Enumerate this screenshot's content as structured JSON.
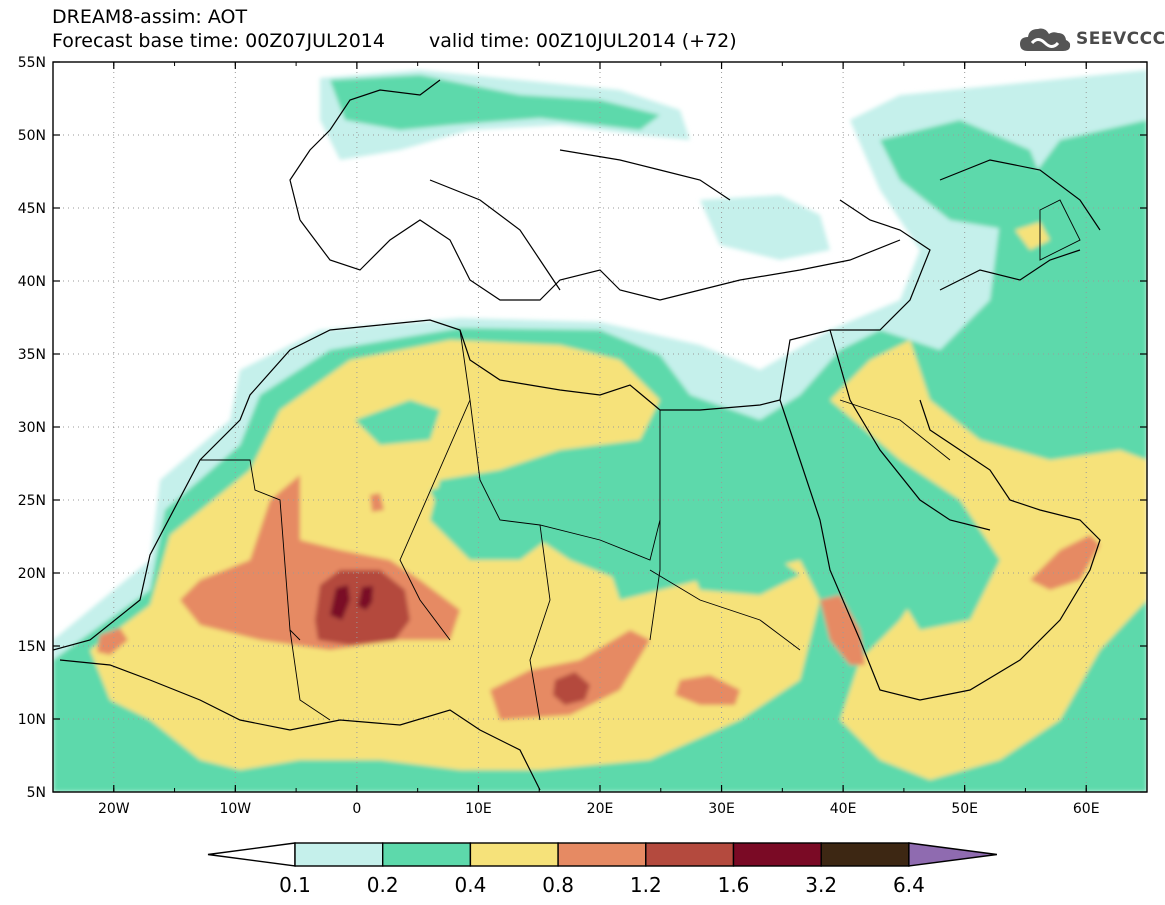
{
  "header": {
    "line1": "DREAM8-assim: AOT",
    "base_time": "Forecast base time: 00Z07JUL2014",
    "valid_time": "valid time: 00Z10JUL2014 (+72)"
  },
  "logo": {
    "text": "SEEVCCC",
    "icon": "cloud-icon"
  },
  "map": {
    "lon_labels": [
      "20W",
      "10W",
      "0",
      "10E",
      "20E",
      "30E",
      "40E",
      "50E",
      "60E"
    ],
    "lat_labels": [
      "55N",
      "50N",
      "45N",
      "40N",
      "35N",
      "30N",
      "25N",
      "20N",
      "15N",
      "10N",
      "5N"
    ],
    "lon_range": [
      -25,
      65
    ],
    "lat_range": [
      5,
      55
    ],
    "grid": true
  },
  "colorbar": {
    "labels": [
      "0.1",
      "0.2",
      "0.4",
      "0.8",
      "1.2",
      "1.6",
      "3.2",
      "6.4"
    ],
    "colors": [
      "#ffffff",
      "#c5f0eb",
      "#5dd9ab",
      "#f6e27a",
      "#e68a63",
      "#b44a3e",
      "#7a0a25",
      "#3d2713",
      "#8f6bb0"
    ]
  }
}
